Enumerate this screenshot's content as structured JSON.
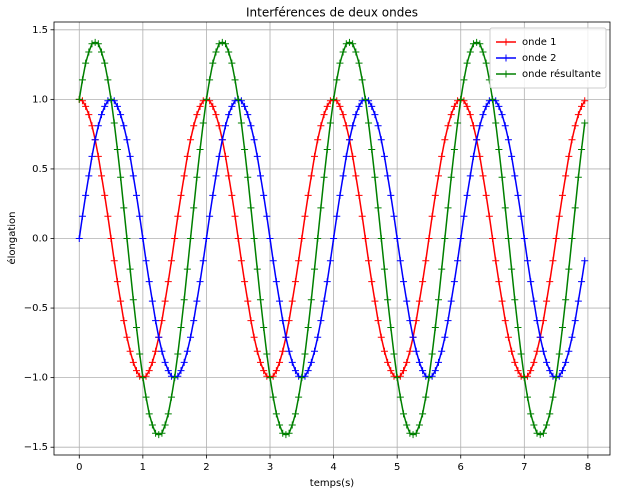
{
  "chart_data": {
    "type": "line",
    "title": "Interférences de deux ondes",
    "xlabel": "temps(s)",
    "ylabel": "élongation",
    "x": [
      0,
      0.05,
      0.1,
      0.15,
      0.2,
      0.25,
      0.3,
      0.35,
      0.4,
      0.45,
      0.5,
      0.55,
      0.6,
      0.65,
      0.7,
      0.75,
      0.8,
      0.85,
      0.9,
      0.95,
      1,
      1.05,
      1.1,
      1.15,
      1.2,
      1.25,
      1.3,
      1.35,
      1.4,
      1.45,
      1.5,
      1.55,
      1.6,
      1.65,
      1.7,
      1.75,
      1.8,
      1.85,
      1.9,
      1.95,
      2,
      2.05,
      2.1,
      2.15,
      2.2,
      2.25,
      2.3,
      2.35,
      2.4,
      2.45,
      2.5,
      2.55,
      2.6,
      2.65,
      2.7,
      2.75,
      2.8,
      2.85,
      2.9,
      2.95,
      3,
      3.05,
      3.1,
      3.15,
      3.2,
      3.25,
      3.3,
      3.35,
      3.4,
      3.45,
      3.5,
      3.55,
      3.6,
      3.65,
      3.7,
      3.75,
      3.8,
      3.85,
      3.9,
      3.95,
      4,
      4.05,
      4.1,
      4.15,
      4.2,
      4.25,
      4.3,
      4.35,
      4.4,
      4.45,
      4.5,
      4.55,
      4.6,
      4.65,
      4.7,
      4.75,
      4.8,
      4.85,
      4.9,
      4.95,
      5,
      5.05,
      5.1,
      5.15,
      5.2,
      5.25,
      5.3,
      5.35,
      5.4,
      5.45,
      5.5,
      5.55,
      5.6,
      5.65,
      5.7,
      5.75,
      5.8,
      5.85,
      5.9,
      5.95,
      6,
      6.05,
      6.1,
      6.15,
      6.2,
      6.25,
      6.3,
      6.35,
      6.4,
      6.45,
      6.5,
      6.55,
      6.6,
      6.65,
      6.7,
      6.75,
      6.8,
      6.85,
      6.9,
      6.95,
      7,
      7.05,
      7.1,
      7.15,
      7.2,
      7.25,
      7.3,
      7.35,
      7.4,
      7.45,
      7.5,
      7.55,
      7.6,
      7.65,
      7.7,
      7.75,
      7.8,
      7.85,
      7.9,
      7.95
    ],
    "series": [
      {
        "name": "onde 1",
        "color": "#ff0000",
        "values": [
          1,
          0.99,
          0.95,
          0.89,
          0.81,
          0.71,
          0.59,
          0.45,
          0.31,
          0.16,
          0,
          -0.16,
          -0.31,
          -0.45,
          -0.59,
          -0.71,
          -0.81,
          -0.89,
          -0.95,
          -0.99,
          -1,
          -0.99,
          -0.95,
          -0.89,
          -0.81,
          -0.71,
          -0.59,
          -0.45,
          -0.31,
          -0.16,
          0,
          0.16,
          0.31,
          0.45,
          0.59,
          0.71,
          0.81,
          0.89,
          0.95,
          0.99,
          1,
          0.99,
          0.95,
          0.89,
          0.81,
          0.71,
          0.59,
          0.45,
          0.31,
          0.16,
          0,
          -0.16,
          -0.31,
          -0.45,
          -0.59,
          -0.71,
          -0.81,
          -0.89,
          -0.95,
          -0.99,
          -1,
          -0.99,
          -0.95,
          -0.89,
          -0.81,
          -0.71,
          -0.59,
          -0.45,
          -0.31,
          -0.16,
          0,
          0.16,
          0.31,
          0.45,
          0.59,
          0.71,
          0.81,
          0.89,
          0.95,
          0.99,
          1,
          0.99,
          0.95,
          0.89,
          0.81,
          0.71,
          0.59,
          0.45,
          0.31,
          0.16,
          0,
          -0.16,
          -0.31,
          -0.45,
          -0.59,
          -0.71,
          -0.81,
          -0.89,
          -0.95,
          -0.99,
          -1,
          -0.99,
          -0.95,
          -0.89,
          -0.81,
          -0.71,
          -0.59,
          -0.45,
          -0.31,
          -0.16,
          0,
          0.16,
          0.31,
          0.45,
          0.59,
          0.71,
          0.81,
          0.89,
          0.95,
          0.99,
          1,
          0.99,
          0.95,
          0.89,
          0.81,
          0.71,
          0.59,
          0.45,
          0.31,
          0.16,
          0,
          -0.16,
          -0.31,
          -0.45,
          -0.59,
          -0.71,
          -0.81,
          -0.89,
          -0.95,
          -0.99,
          -1,
          -0.99,
          -0.95,
          -0.89,
          -0.81,
          -0.71,
          -0.59,
          -0.45,
          -0.31,
          -0.16,
          0,
          0.16,
          0.31,
          0.45,
          0.59,
          0.71,
          0.81,
          0.89,
          0.95,
          0.99
        ]
      },
      {
        "name": "onde 2",
        "color": "#0000ff",
        "values": [
          0,
          0.16,
          0.31,
          0.45,
          0.59,
          0.71,
          0.81,
          0.89,
          0.95,
          0.99,
          1,
          0.99,
          0.95,
          0.89,
          0.81,
          0.71,
          0.59,
          0.45,
          0.31,
          0.16,
          0,
          -0.16,
          -0.31,
          -0.45,
          -0.59,
          -0.71,
          -0.81,
          -0.89,
          -0.95,
          -0.99,
          -1,
          -0.99,
          -0.95,
          -0.89,
          -0.81,
          -0.71,
          -0.59,
          -0.45,
          -0.31,
          -0.16,
          0,
          0.16,
          0.31,
          0.45,
          0.59,
          0.71,
          0.81,
          0.89,
          0.95,
          0.99,
          1,
          0.99,
          0.95,
          0.89,
          0.81,
          0.71,
          0.59,
          0.45,
          0.31,
          0.16,
          0,
          -0.16,
          -0.31,
          -0.45,
          -0.59,
          -0.71,
          -0.81,
          -0.89,
          -0.95,
          -0.99,
          -1,
          -0.99,
          -0.95,
          -0.89,
          -0.81,
          -0.71,
          -0.59,
          -0.45,
          -0.31,
          -0.16,
          0,
          0.16,
          0.31,
          0.45,
          0.59,
          0.71,
          0.81,
          0.89,
          0.95,
          0.99,
          1,
          0.99,
          0.95,
          0.89,
          0.81,
          0.71,
          0.59,
          0.45,
          0.31,
          0.16,
          0,
          -0.16,
          -0.31,
          -0.45,
          -0.59,
          -0.71,
          -0.81,
          -0.89,
          -0.95,
          -0.99,
          -1,
          -0.99,
          -0.95,
          -0.89,
          -0.81,
          -0.71,
          -0.59,
          -0.45,
          -0.31,
          -0.16,
          0,
          0.16,
          0.31,
          0.45,
          0.59,
          0.71,
          0.81,
          0.89,
          0.95,
          0.99,
          1,
          0.99,
          0.95,
          0.89,
          0.81,
          0.71,
          0.59,
          0.45,
          0.31,
          0.16,
          0,
          -0.16,
          -0.31,
          -0.45,
          -0.59,
          -0.71,
          -0.81,
          -0.89,
          -0.95,
          -0.99,
          -1,
          -0.99,
          -0.95,
          -0.89,
          -0.81,
          -0.71,
          -0.59,
          -0.45,
          -0.31,
          -0.16
        ]
      },
      {
        "name": "onde résultante",
        "color": "#008000",
        "values": [
          1,
          1.14,
          1.26,
          1.34,
          1.4,
          1.41,
          1.4,
          1.34,
          1.26,
          1.14,
          1,
          0.83,
          0.64,
          0.44,
          0.22,
          0,
          -0.22,
          -0.44,
          -0.64,
          -0.83,
          -1,
          -1.14,
          -1.26,
          -1.34,
          -1.4,
          -1.41,
          -1.4,
          -1.34,
          -1.26,
          -1.14,
          -1,
          -0.83,
          -0.64,
          -0.44,
          -0.22,
          0,
          0.22,
          0.44,
          0.64,
          0.83,
          1,
          1.14,
          1.26,
          1.34,
          1.4,
          1.41,
          1.4,
          1.34,
          1.26,
          1.14,
          1,
          0.83,
          0.64,
          0.44,
          0.22,
          0,
          -0.22,
          -0.44,
          -0.64,
          -0.83,
          -1,
          -1.14,
          -1.26,
          -1.34,
          -1.4,
          -1.41,
          -1.4,
          -1.34,
          -1.26,
          -1.14,
          -1,
          -0.83,
          -0.64,
          -0.44,
          -0.22,
          0,
          0.22,
          0.44,
          0.64,
          0.83,
          1,
          1.14,
          1.26,
          1.34,
          1.4,
          1.41,
          1.4,
          1.34,
          1.26,
          1.14,
          1,
          0.83,
          0.64,
          0.44,
          0.22,
          0,
          -0.22,
          -0.44,
          -0.64,
          -0.83,
          -1,
          -1.14,
          -1.26,
          -1.34,
          -1.4,
          -1.41,
          -1.4,
          -1.34,
          -1.26,
          -1.14,
          -1,
          -0.83,
          -0.64,
          -0.44,
          -0.22,
          0,
          0.22,
          0.44,
          0.64,
          0.83,
          1,
          1.14,
          1.26,
          1.34,
          1.4,
          1.41,
          1.4,
          1.34,
          1.26,
          1.14,
          1,
          0.83,
          0.64,
          0.44,
          0.22,
          0,
          -0.22,
          -0.44,
          -0.64,
          -0.83,
          -1,
          -1.14,
          -1.26,
          -1.34,
          -1.4,
          -1.41,
          -1.4,
          -1.34,
          -1.26,
          -1.14,
          -1,
          -0.83,
          -0.64,
          -0.44,
          -0.22,
          0,
          0.22,
          0.44,
          0.64,
          0.83
        ]
      }
    ],
    "xlim": [
      -0.3975,
      8.3475
    ],
    "xticks": [
      0,
      1,
      2,
      3,
      4,
      5,
      6,
      7,
      8
    ],
    "ylim": [
      -1.556,
      1.556
    ],
    "yticks": [
      {
        "value": -1.5,
        "label": "−1.5"
      },
      {
        "value": -1,
        "label": "−1.0"
      },
      {
        "value": -0.5,
        "label": "−0.5"
      },
      {
        "value": 0,
        "label": "0.0"
      },
      0.5,
      {
        "value": 1,
        "label": "1.0"
      },
      1.5
    ],
    "grid": true,
    "legend": "upper right",
    "marker": "+"
  }
}
